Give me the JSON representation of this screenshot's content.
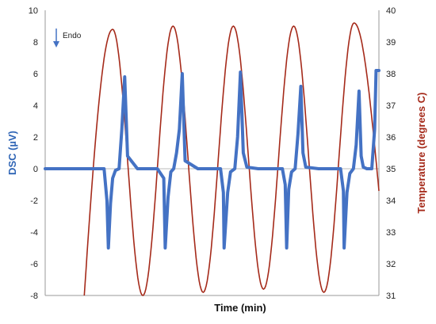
{
  "chart_data": {
    "type": "line",
    "title": "",
    "xlabel": "Time (min)",
    "ylabel_left": "DSC (µV)",
    "ylabel_right": "Temperature (degrees C)",
    "ylim_left": [
      -8,
      10
    ],
    "ylim_right": [
      31,
      40
    ],
    "yticks_left": [
      "10",
      "8",
      "6",
      "4",
      "2",
      "0",
      "-2",
      "-4",
      "-6",
      "-8"
    ],
    "yticks_right": [
      "40",
      "39",
      "38",
      "37",
      "36",
      "35",
      "34",
      "33",
      "32",
      "31"
    ],
    "grid": false,
    "legend": "none",
    "annotation": "Endo",
    "colors": {
      "dsc": "#4472c4",
      "temperature": "#a52a1a",
      "dsc_label": "#2e64b5",
      "temperature_label": "#a52a1a"
    },
    "series": [
      {
        "axis": "left",
        "x": [
          0,
          10,
          16.6,
          17.4,
          17.8,
          18.4,
          19.0,
          19.8,
          20.8,
          21.6,
          22.4,
          23.2,
          26,
          31.6,
          33.4,
          33.8,
          34.6,
          35.4,
          36.2,
          37.0,
          37.8,
          38.6,
          39.4,
          43,
          49.4,
          50.2,
          50.4,
          51.4,
          52.2,
          53.4,
          54.2,
          55.0,
          55.8,
          56.8,
          60,
          66.8,
          67.6,
          68.0,
          68.6,
          69.4,
          70.4,
          71.2,
          72.0,
          72.6,
          73.4,
          77,
          83.2,
          84.0,
          84.2,
          85.0,
          85.8,
          86.8,
          87.6,
          88.4,
          89.0,
          89.6,
          90.6,
          91,
          92,
          92.8,
          93.2,
          94.0
        ],
        "y": [
          0,
          0,
          0,
          -2.0,
          -5.0,
          -2.2,
          -0.6,
          -0.1,
          0,
          2.5,
          5.8,
          0.8,
          0,
          0,
          -0.6,
          -5.0,
          -1.8,
          -0.2,
          0,
          1.0,
          2.5,
          6.0,
          0.5,
          0,
          0,
          -1.5,
          -5.0,
          -1.5,
          -0.2,
          0,
          2.0,
          6.1,
          1.0,
          0.1,
          0,
          0,
          -1.0,
          -5.0,
          -1.3,
          -0.2,
          0,
          2.2,
          5.2,
          1.0,
          0.1,
          0,
          0,
          -1.4,
          -5.0,
          -1.5,
          -0.3,
          0,
          1.5,
          4.9,
          0.8,
          0.1,
          0,
          0,
          0,
          2.5,
          6.2,
          6.2
        ]
      },
      {
        "axis": "right",
        "x": [
          11,
          94
        ],
        "y": [
          31.0,
          34.3
        ],
        "shape": "sine",
        "cycle_period": 17.0,
        "peak_x": [
          19.0,
          36.0,
          53.0,
          70.0,
          87.0
        ],
        "trough_x": [
          27.5,
          44.5,
          61.5,
          78.5
        ],
        "peak_y": [
          39.4,
          39.5,
          39.5,
          39.5,
          39.6
        ],
        "trough_y": [
          31.0,
          31.1,
          31.2,
          31.1
        ]
      }
    ]
  }
}
